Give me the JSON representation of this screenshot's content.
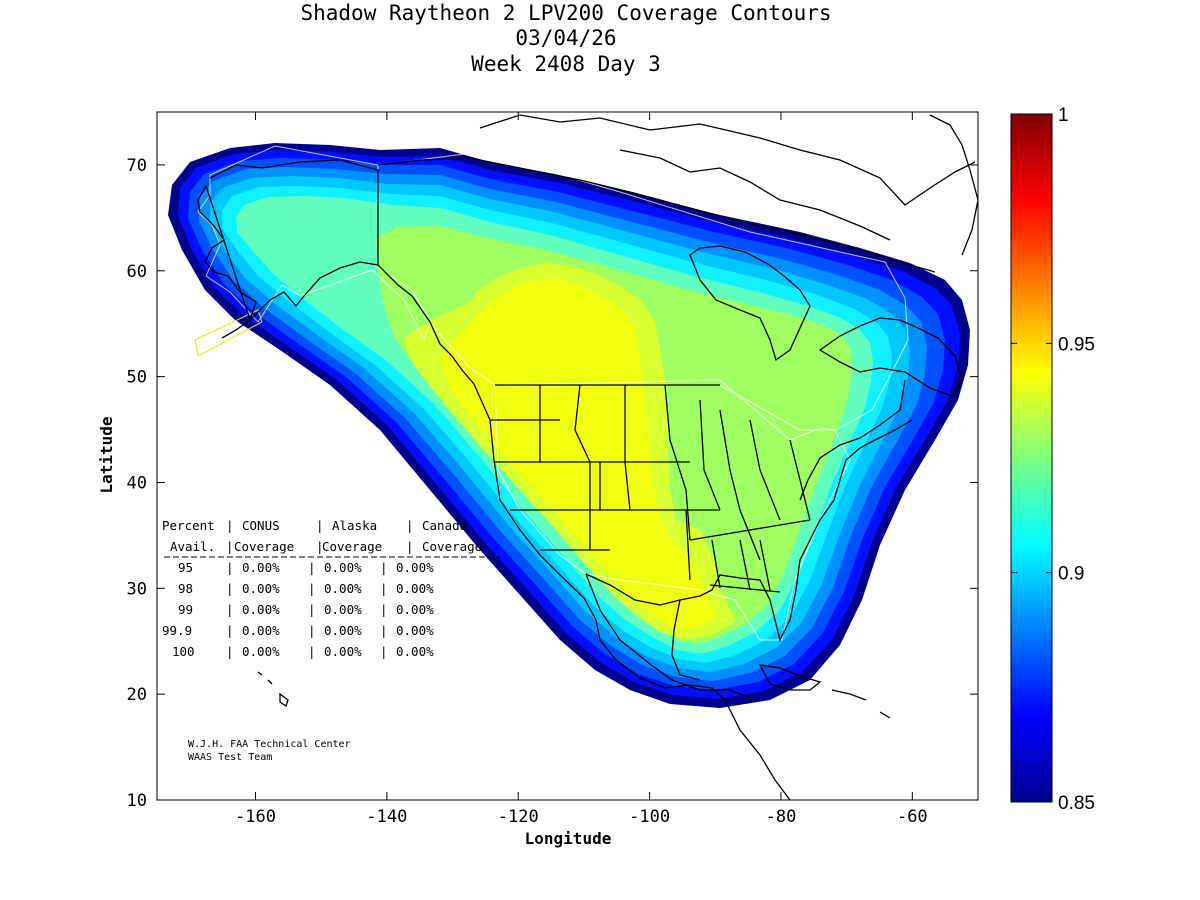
{
  "title": {
    "line1": "Shadow Raytheon 2 LPV200 Coverage Contours",
    "line2": "03/04/26",
    "line3": "Week 2408 Day 3"
  },
  "axes": {
    "xlabel": "Longitude",
    "ylabel": "Latitude",
    "xticks": [
      "-160",
      "-140",
      "-120",
      "-100",
      "-80",
      "-60"
    ],
    "yticks": [
      "10",
      "20",
      "30",
      "40",
      "50",
      "60",
      "70"
    ],
    "xlim": [
      -175,
      -50
    ],
    "ylim": [
      10,
      75
    ]
  },
  "colorbar": {
    "ticks": [
      "0.85",
      "0.9",
      "0.95",
      "1"
    ],
    "range": [
      0.85,
      1
    ],
    "colormap": "jet"
  },
  "table": {
    "header1": [
      "Percent",
      "CONUS",
      "Alaska",
      "Canada"
    ],
    "header2": [
      "Avail.",
      "Coverage",
      "Coverage",
      "Coverage"
    ],
    "rows": [
      {
        "pct": "95",
        "conus": "0.00%",
        "alaska": "0.00%",
        "canada": "0.00%"
      },
      {
        "pct": "98",
        "conus": "0.00%",
        "alaska": "0.00%",
        "canada": "0.00%"
      },
      {
        "pct": "99",
        "conus": "0.00%",
        "alaska": "0.00%",
        "canada": "0.00%"
      },
      {
        "pct": "99.9",
        "conus": "0.00%",
        "alaska": "0.00%",
        "canada": "0.00%"
      },
      {
        "pct": "100",
        "conus": "0.00%",
        "alaska": "0.00%",
        "canada": "0.00%"
      }
    ]
  },
  "credit": {
    "line1": "W.J.H. FAA Technical Center",
    "line2": "WAAS Test Team"
  },
  "colors": {
    "c085": "#00008f",
    "c086": "#0010ff",
    "c087": "#0050ff",
    "c088": "#0090ff",
    "c089": "#00c8ff",
    "c090": "#10f0ff",
    "c091": "#60ffc0",
    "c092": "#a0ff60",
    "c093": "#d8ff30",
    "c094": "#f0ff10"
  }
}
